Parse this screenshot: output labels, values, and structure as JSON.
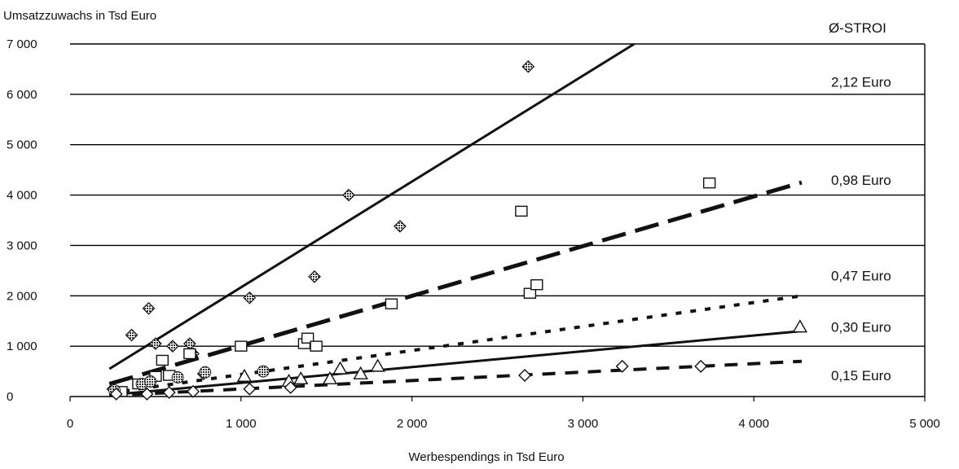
{
  "chart_data": {
    "type": "scatter",
    "ylabel": "Umsatzzuwachs in Tsd Euro",
    "xlabel": "Werbespendings in Tsd Euro",
    "legend_title": "Ø-STROI",
    "xlim": [
      0,
      5000
    ],
    "ylim": [
      0,
      7000
    ],
    "x_ticks": [
      0,
      1000,
      2000,
      3000,
      4000,
      5000
    ],
    "x_tick_labels": [
      "0",
      "1 000",
      "2 000",
      "3 000",
      "4 000",
      "5 000"
    ],
    "y_ticks": [
      0,
      1000,
      2000,
      3000,
      4000,
      5000,
      6000,
      7000
    ],
    "y_tick_labels": [
      "0",
      "1 000",
      "2 000",
      "3 000",
      "4 000",
      "5 000",
      "6 000",
      "7 000"
    ],
    "grid": "horizontal",
    "series": [
      {
        "name": "2,12 Euro",
        "marker": "filled-diamond",
        "points": [
          [
            250,
            150
          ],
          [
            360,
            1220
          ],
          [
            460,
            1750
          ],
          [
            500,
            1050
          ],
          [
            600,
            1000
          ],
          [
            700,
            1050
          ],
          [
            720,
            850
          ],
          [
            780,
            450
          ],
          [
            1050,
            1960
          ],
          [
            1430,
            2380
          ],
          [
            1630,
            4000
          ],
          [
            1930,
            3380
          ],
          [
            2680,
            6550
          ]
        ],
        "trend": {
          "x": [
            230,
            3300
          ],
          "y": [
            550,
            7000
          ],
          "style": "solid"
        }
      },
      {
        "name": "0,98 Euro",
        "marker": "open-square",
        "points": [
          [
            300,
            100
          ],
          [
            400,
            250
          ],
          [
            500,
            400
          ],
          [
            540,
            720
          ],
          [
            580,
            420
          ],
          [
            700,
            850
          ],
          [
            1000,
            1000
          ],
          [
            1370,
            1050
          ],
          [
            1390,
            1160
          ],
          [
            1440,
            1000
          ],
          [
            1880,
            1840
          ],
          [
            2640,
            3680
          ],
          [
            2690,
            2050
          ],
          [
            2730,
            2220
          ],
          [
            3740,
            4240
          ]
        ],
        "trend": {
          "x": [
            230,
            4280
          ],
          "y": [
            250,
            4250
          ],
          "style": "long-dash"
        }
      },
      {
        "name": "0,47 Euro",
        "marker": "hatched-circle",
        "points": [
          [
            260,
            120
          ],
          [
            420,
            250
          ],
          [
            470,
            300
          ],
          [
            630,
            380
          ],
          [
            790,
            480
          ],
          [
            1130,
            500
          ]
        ],
        "trend": {
          "x": [
            230,
            4280
          ],
          "y": [
            70,
            2000
          ],
          "style": "short-dash"
        }
      },
      {
        "name": "0,30 Euro",
        "marker": "open-triangle",
        "points": [
          [
            1020,
            400
          ],
          [
            1280,
            300
          ],
          [
            1350,
            350
          ],
          [
            1520,
            350
          ],
          [
            1580,
            550
          ],
          [
            1700,
            450
          ],
          [
            1800,
            600
          ],
          [
            4270,
            1380
          ]
        ],
        "trend": {
          "x": [
            230,
            4280
          ],
          "y": [
            30,
            1300
          ],
          "style": "solid"
        }
      },
      {
        "name": "0,15 Euro",
        "marker": "open-diamond",
        "points": [
          [
            270,
            50
          ],
          [
            450,
            50
          ],
          [
            580,
            80
          ],
          [
            720,
            100
          ],
          [
            1050,
            150
          ],
          [
            1290,
            180
          ],
          [
            2660,
            420
          ],
          [
            3230,
            600
          ],
          [
            3690,
            600
          ]
        ],
        "trend": {
          "x": [
            230,
            4280
          ],
          "y": [
            20,
            700
          ],
          "style": "dash"
        }
      }
    ]
  }
}
